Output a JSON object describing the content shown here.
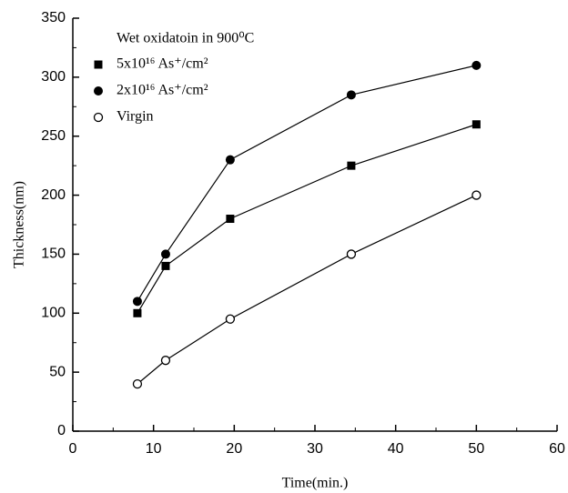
{
  "chart_data": {
    "type": "line",
    "legend_title": "Wet oxidatoin in 900⁰C",
    "x_label": "Time(min.)",
    "y_label": "Thickness(nm)",
    "x": [
      8,
      11.5,
      19.5,
      34.5,
      50
    ],
    "series": [
      {
        "name": "5x10¹⁶ As⁺/cm²",
        "color": "#000000",
        "marker": "square",
        "values": [
          100,
          140,
          180,
          225,
          260
        ]
      },
      {
        "name": "2x10¹⁶ As⁺/cm²",
        "color": "#000000",
        "marker": "circle",
        "values": [
          110,
          150,
          230,
          285,
          310
        ]
      },
      {
        "name": "Virgin",
        "color": "#000000",
        "marker": "open-circle",
        "values": [
          40,
          60,
          95,
          150,
          200
        ]
      }
    ],
    "xlim": [
      0,
      60
    ],
    "xticks": [
      0,
      10,
      20,
      30,
      40,
      50,
      60
    ],
    "ylim": [
      0,
      350
    ],
    "yticks": [
      0,
      50,
      100,
      150,
      200,
      250,
      300,
      350
    ],
    "legend": "upper left"
  }
}
